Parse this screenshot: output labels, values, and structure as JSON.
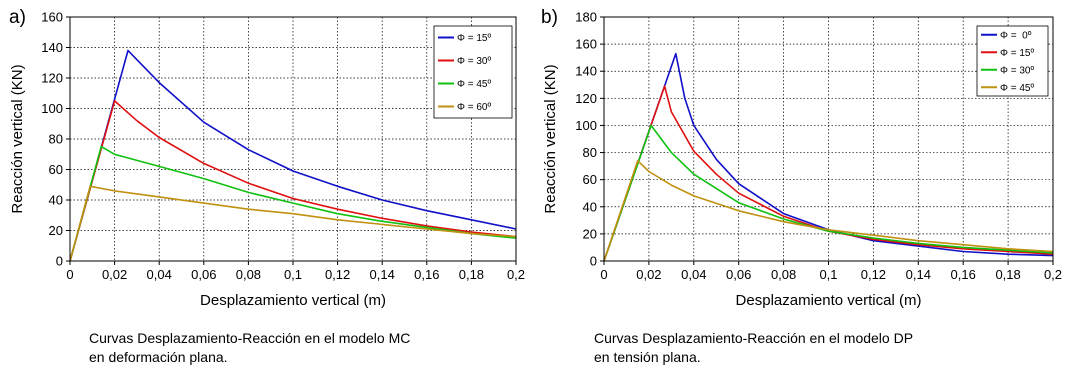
{
  "chart_data": [
    {
      "type": "line",
      "panel_label": "a)",
      "xlabel": "Desplazamiento vertical (m)",
      "ylabel": "Reacción vertical (KN)",
      "xlim": [
        0,
        0.2
      ],
      "ylim": [
        0,
        160
      ],
      "x_ticks": [
        "0",
        "0,02",
        "0,04",
        "0,06",
        "0,08",
        "0,1",
        "0,12",
        "0,14",
        "0,16",
        "0,18",
        "0,2"
      ],
      "y_ticks": [
        "0",
        "20",
        "40",
        "60",
        "80",
        "100",
        "120",
        "140",
        "160"
      ],
      "grid": true,
      "legend_position": "top-right",
      "caption": [
        "Curvas Desplazamiento-Reacción en el modelo MC",
        "en deformación plana."
      ],
      "series": [
        {
          "name": "Φ = 15º",
          "color": "#1010c8",
          "points": [
            [
              0,
              0
            ],
            [
              0.026,
              138
            ],
            [
              0.03,
              132
            ],
            [
              0.04,
              117
            ],
            [
              0.06,
              91
            ],
            [
              0.08,
              73
            ],
            [
              0.1,
              59
            ],
            [
              0.12,
              49
            ],
            [
              0.14,
              40
            ],
            [
              0.16,
              33
            ],
            [
              0.18,
              27
            ],
            [
              0.2,
              21
            ]
          ]
        },
        {
          "name": "Φ = 30º",
          "color": "#e01010",
          "points": [
            [
              0,
              0
            ],
            [
              0.02,
              105
            ],
            [
              0.03,
              92
            ],
            [
              0.04,
              81
            ],
            [
              0.06,
              64
            ],
            [
              0.08,
              51
            ],
            [
              0.1,
              41
            ],
            [
              0.12,
              34
            ],
            [
              0.14,
              28
            ],
            [
              0.16,
              23
            ],
            [
              0.18,
              19
            ],
            [
              0.2,
              16
            ]
          ]
        },
        {
          "name": "Φ = 45º",
          "color": "#10c010",
          "points": [
            [
              0,
              0
            ],
            [
              0.014,
              75
            ],
            [
              0.02,
              70
            ],
            [
              0.04,
              62
            ],
            [
              0.06,
              54
            ],
            [
              0.08,
              45
            ],
            [
              0.1,
              38
            ],
            [
              0.12,
              31
            ],
            [
              0.14,
              26
            ],
            [
              0.16,
              22
            ],
            [
              0.18,
              18
            ],
            [
              0.2,
              15
            ]
          ]
        },
        {
          "name": "Φ = 60º",
          "color": "#c09010",
          "points": [
            [
              0,
              0
            ],
            [
              0.009,
              49
            ],
            [
              0.02,
              46
            ],
            [
              0.04,
              42
            ],
            [
              0.06,
              38
            ],
            [
              0.08,
              34
            ],
            [
              0.1,
              31
            ],
            [
              0.12,
              27
            ],
            [
              0.14,
              24
            ],
            [
              0.16,
              21
            ],
            [
              0.18,
              18
            ],
            [
              0.2,
              16
            ]
          ]
        }
      ]
    },
    {
      "type": "line",
      "panel_label": "b)",
      "xlabel": "Desplazamiento vertical (m)",
      "ylabel": "Reacción vertical (KN)",
      "xlim": [
        0,
        0.2
      ],
      "ylim": [
        0,
        180
      ],
      "x_ticks": [
        "0",
        "0,02",
        "0,04",
        "0,06",
        "0,08",
        "0,1",
        "0,12",
        "0,14",
        "0,16",
        "0,18",
        "0,2"
      ],
      "y_ticks": [
        "0",
        "20",
        "40",
        "60",
        "80",
        "100",
        "120",
        "140",
        "160",
        "180"
      ],
      "grid": true,
      "legend_position": "top-right",
      "caption": [
        "Curvas Desplazamiento-Reacción en el modelo DP",
        "en tensión plana."
      ],
      "series": [
        {
          "name": "Φ =  0º",
          "color": "#1010c8",
          "points": [
            [
              0,
              0
            ],
            [
              0.032,
              153
            ],
            [
              0.036,
              120
            ],
            [
              0.04,
              100
            ],
            [
              0.05,
              75
            ],
            [
              0.06,
              57
            ],
            [
              0.08,
              35
            ],
            [
              0.1,
              23
            ],
            [
              0.12,
              15
            ],
            [
              0.14,
              11
            ],
            [
              0.16,
              7
            ],
            [
              0.18,
              5
            ],
            [
              0.2,
              4
            ]
          ]
        },
        {
          "name": "Φ = 15º",
          "color": "#e01010",
          "points": [
            [
              0,
              0
            ],
            [
              0.027,
              129
            ],
            [
              0.03,
              110
            ],
            [
              0.04,
              81
            ],
            [
              0.05,
              64
            ],
            [
              0.06,
              50
            ],
            [
              0.08,
              33
            ],
            [
              0.1,
              22
            ],
            [
              0.12,
              16
            ],
            [
              0.14,
              12
            ],
            [
              0.16,
              9
            ],
            [
              0.18,
              7
            ],
            [
              0.2,
              5
            ]
          ]
        },
        {
          "name": "Φ = 30º",
          "color": "#10c010",
          "points": [
            [
              0,
              0
            ],
            [
              0.021,
              100
            ],
            [
              0.03,
              80
            ],
            [
              0.04,
              64
            ],
            [
              0.06,
              43
            ],
            [
              0.08,
              31
            ],
            [
              0.1,
              22
            ],
            [
              0.12,
              17
            ],
            [
              0.14,
              13
            ],
            [
              0.16,
              10
            ],
            [
              0.18,
              8
            ],
            [
              0.2,
              6
            ]
          ]
        },
        {
          "name": "Φ = 45º",
          "color": "#c09010",
          "points": [
            [
              0,
              0
            ],
            [
              0.015,
              74
            ],
            [
              0.02,
              66
            ],
            [
              0.03,
              56
            ],
            [
              0.04,
              48
            ],
            [
              0.06,
              37
            ],
            [
              0.08,
              29
            ],
            [
              0.1,
              23
            ],
            [
              0.12,
              19
            ],
            [
              0.14,
              15
            ],
            [
              0.16,
              12
            ],
            [
              0.18,
              9
            ],
            [
              0.2,
              7
            ]
          ]
        }
      ]
    }
  ]
}
